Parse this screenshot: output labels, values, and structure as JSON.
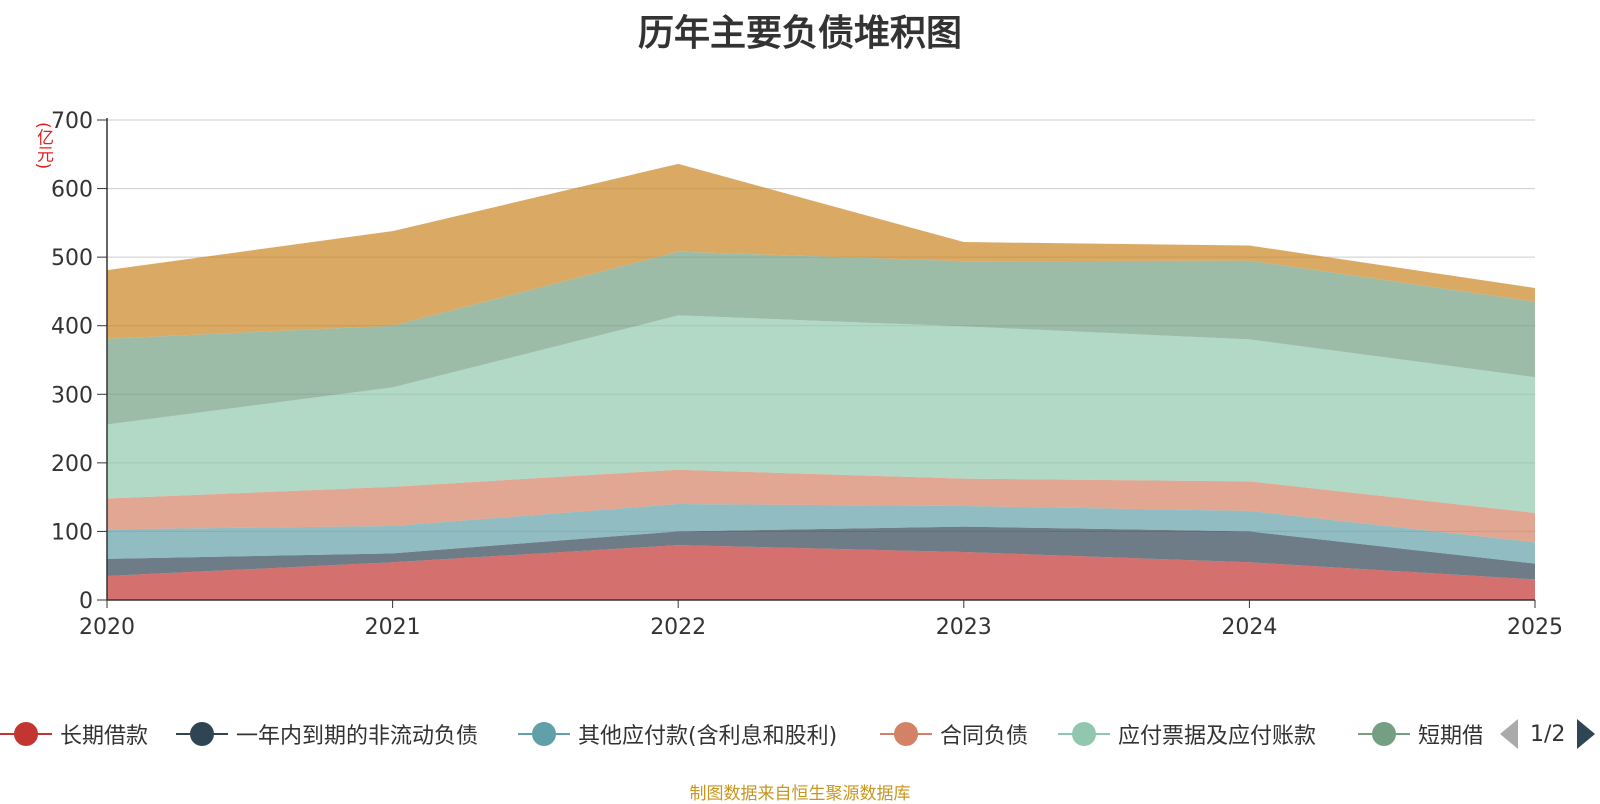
{
  "chart_data": {
    "type": "area",
    "stacked": true,
    "title": "历年主要负债堆积图",
    "ylabel": "(亿元)",
    "ylim": [
      0,
      700
    ],
    "yticks": [
      0,
      100,
      200,
      300,
      400,
      500,
      600,
      700
    ],
    "categories": [
      "2020",
      "2021",
      "2022",
      "2023",
      "2024",
      "2025"
    ],
    "grid": true,
    "legend_position": "bottom",
    "series": [
      {
        "name": "长期借款",
        "color": "#c23531",
        "values": [
          35,
          55,
          80,
          70,
          55,
          30
        ]
      },
      {
        "name": "一年内到期的非流动负债",
        "color": "#2f4554",
        "values": [
          25,
          13,
          20,
          37,
          45,
          23
        ]
      },
      {
        "name": "其他应付款(含利息和股利)",
        "color": "#61a0a8",
        "values": [
          43,
          40,
          40,
          30,
          30,
          31
        ]
      },
      {
        "name": "合同负债",
        "color": "#d48265",
        "values": [
          45,
          57,
          50,
          40,
          43,
          43
        ]
      },
      {
        "name": "应付票据及应付账款",
        "color": "#91c7ae",
        "values": [
          108,
          145,
          225,
          222,
          207,
          198
        ]
      },
      {
        "name": "短期借款",
        "color": "#749f83",
        "values": [
          125,
          90,
          93,
          95,
          115,
          110
        ]
      },
      {
        "name": "",
        "color": "#ca8622",
        "values": [
          100,
          138,
          128,
          28,
          22,
          20
        ]
      }
    ]
  },
  "legend": {
    "page_indicator": "1/2",
    "visible_labels": [
      "长期借款",
      "一年内到期的非流动负债",
      "其他应付款(含利息和股利)",
      "合同负债",
      "应付票据及应付账款",
      "短期借款"
    ]
  },
  "source_note": "制图数据来自恒生聚源数据库",
  "colors": {
    "unit_label": "#e02020",
    "source_note": "#c8961e",
    "axis": "#333333",
    "grid": "#cccccc",
    "pager_active": "#2f4554",
    "pager_inactive": "#aaaaaa"
  }
}
